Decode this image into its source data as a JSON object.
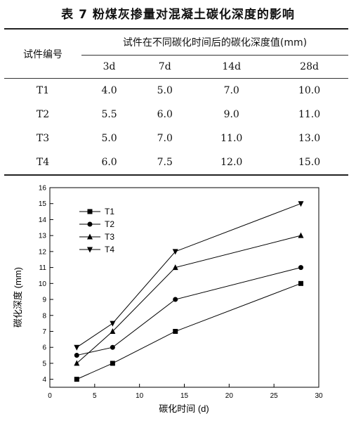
{
  "title": "表 7  粉煤灰掺量对混凝土碳化深度的影响",
  "table": {
    "row_header": "试件编号",
    "group_header": "试件在不同碳化时间后的碳化深度值(mm)",
    "columns": [
      "3d",
      "7d",
      "14d",
      "28d"
    ],
    "rows": [
      {
        "id": "T1",
        "values": [
          "4.0",
          "5.0",
          "7.0",
          "10.0"
        ]
      },
      {
        "id": "T2",
        "values": [
          "5.5",
          "6.0",
          "9.0",
          "11.0"
        ]
      },
      {
        "id": "T3",
        "values": [
          "5.0",
          "7.0",
          "11.0",
          "13.0"
        ]
      },
      {
        "id": "T4",
        "values": [
          "6.0",
          "7.5",
          "12.0",
          "15.0"
        ]
      }
    ]
  },
  "chart_data": {
    "type": "line",
    "xlabel": "碳化时间 (d)",
    "ylabel": "碳化深度 (mm)",
    "xlim": [
      0,
      30
    ],
    "ylim": [
      3.5,
      16
    ],
    "xticks": [
      0,
      5,
      10,
      15,
      20,
      25,
      30
    ],
    "yticks": [
      4,
      5,
      6,
      7,
      8,
      9,
      10,
      11,
      12,
      13,
      14,
      15,
      16
    ],
    "grid": false,
    "legend_position": "top-left",
    "series": [
      {
        "name": "T1",
        "marker": "square",
        "x": [
          3,
          7,
          14,
          28
        ],
        "y": [
          4.0,
          5.0,
          7.0,
          10.0
        ]
      },
      {
        "name": "T2",
        "marker": "circle",
        "x": [
          3,
          7,
          14,
          28
        ],
        "y": [
          5.5,
          6.0,
          9.0,
          11.0
        ]
      },
      {
        "name": "T3",
        "marker": "triangle-up",
        "x": [
          3,
          7,
          14,
          28
        ],
        "y": [
          5.0,
          7.0,
          11.0,
          13.0
        ]
      },
      {
        "name": "T4",
        "marker": "triangle-down",
        "x": [
          3,
          7,
          14,
          28
        ],
        "y": [
          6.0,
          7.5,
          12.0,
          15.0
        ]
      }
    ]
  }
}
